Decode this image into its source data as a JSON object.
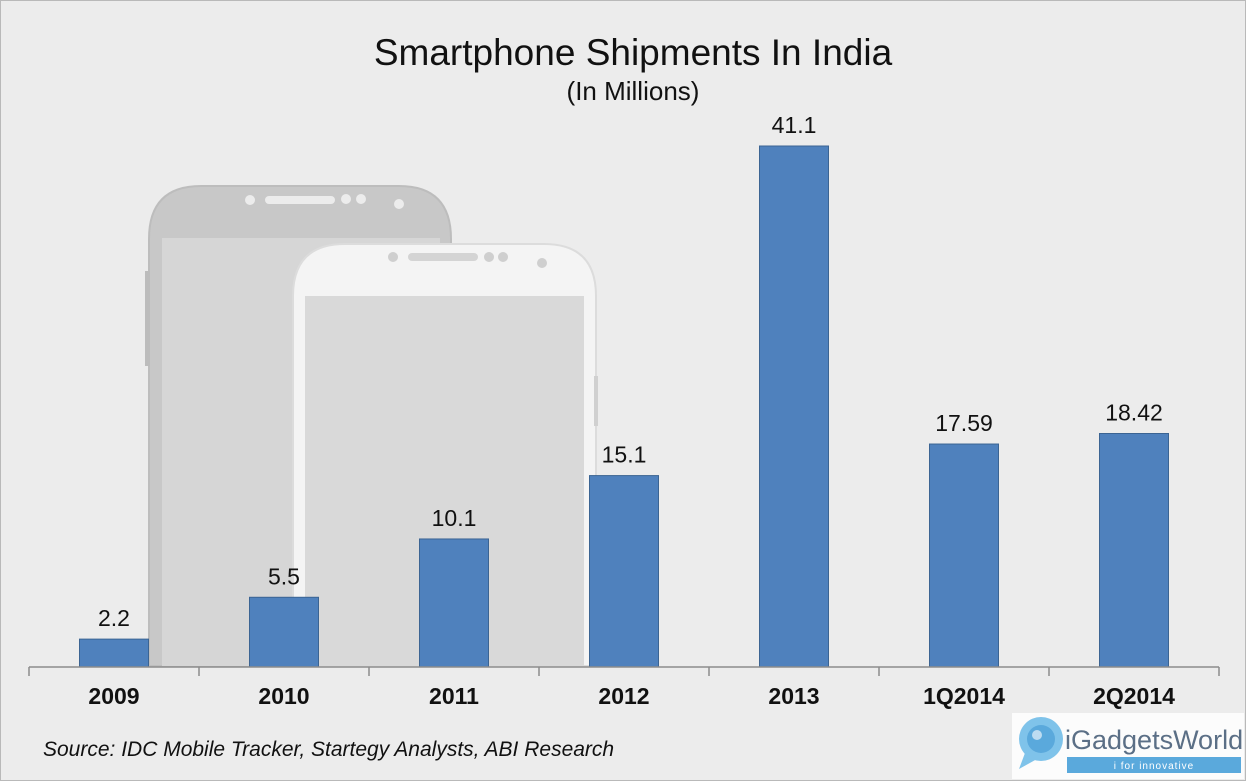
{
  "chart_data": {
    "type": "bar",
    "title": "Smartphone Shipments In India",
    "subtitle": "(In Millions)",
    "categories": [
      "2009",
      "2010",
      "2011",
      "2012",
      "2013",
      "1Q2014",
      "2Q2014"
    ],
    "values": [
      2.2,
      5.5,
      10.1,
      15.1,
      41.1,
      17.59,
      18.42
    ],
    "value_labels": [
      "2.2",
      "5.5",
      "10.1",
      "15.1",
      "41.1",
      "17.59",
      "18.42"
    ],
    "xlabel": "",
    "ylabel": "",
    "ylim": [
      0,
      41.1
    ],
    "grid": false,
    "legend": "none",
    "bar_color": "#4f81bd"
  },
  "source": "Source: IDC Mobile Tracker, Startegy Analysts, ABI Research",
  "logo": {
    "name": "iGadgetsWorld",
    "tagline": "i for innovative"
  },
  "colors": {
    "background": "#ececec",
    "bar": "#4f81bd",
    "logo_accent": "#5aa9dc"
  }
}
